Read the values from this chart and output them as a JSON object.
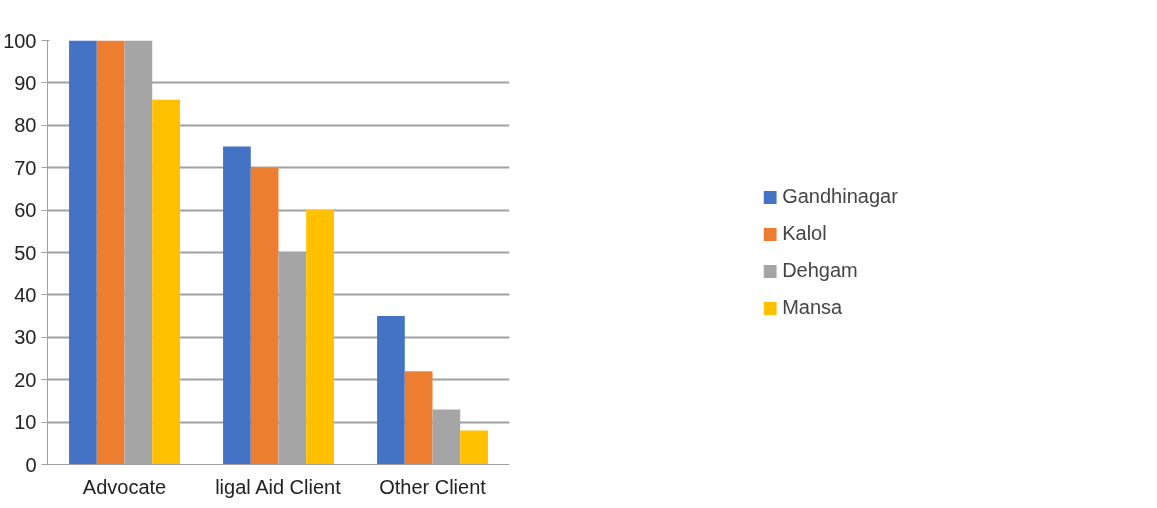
{
  "chart_data": {
    "type": "bar",
    "categories": [
      "Advocate",
      "ligal Aid Client",
      "Other Client"
    ],
    "series": [
      {
        "name": "Gandhinagar",
        "color": "#4472c4",
        "values": [
          100,
          75,
          35
        ]
      },
      {
        "name": "Kalol",
        "color": "#ed7d31",
        "values": [
          100,
          70,
          22
        ]
      },
      {
        "name": "Dehgam",
        "color": "#a5a5a5",
        "values": [
          100,
          50,
          13
        ]
      },
      {
        "name": "Mansa",
        "color": "#ffc000",
        "values": [
          86,
          60,
          8
        ]
      }
    ],
    "ylim": [
      0,
      100
    ],
    "yticks": [
      0,
      10,
      20,
      30,
      40,
      50,
      60,
      70,
      80,
      90,
      100
    ],
    "grid": "y",
    "legend": "right"
  }
}
